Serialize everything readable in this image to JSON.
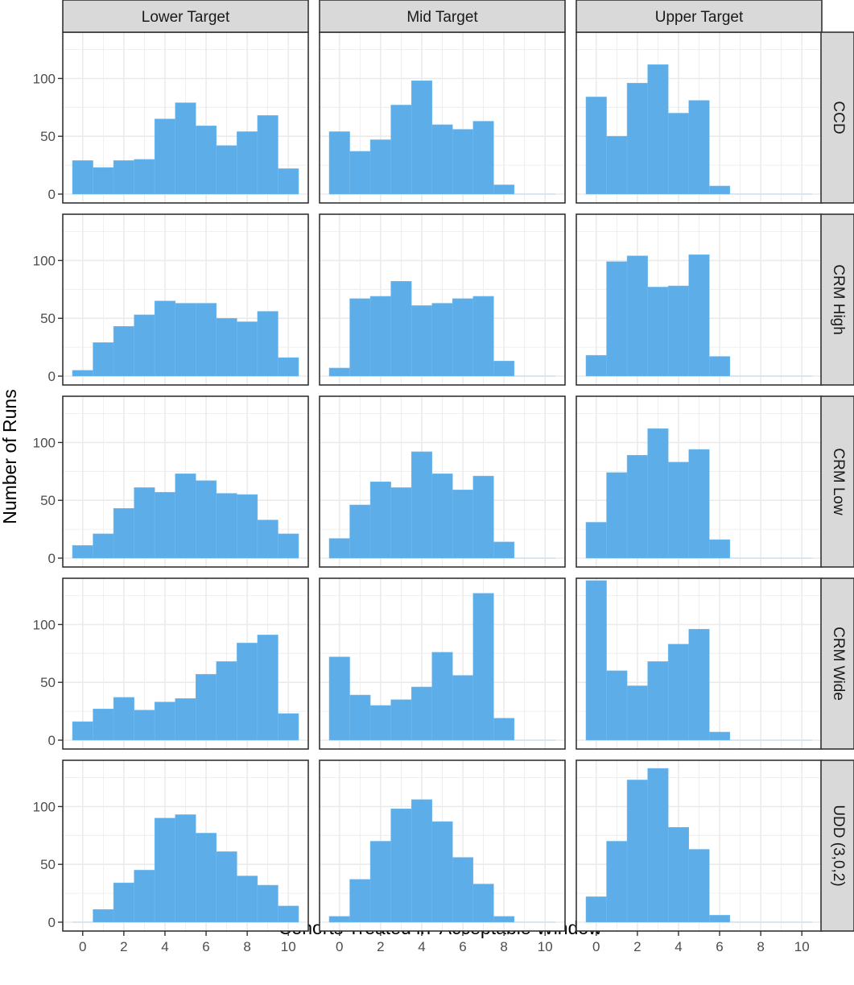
{
  "chart_data": {
    "type": "bar",
    "subtype": "faceted-histogram",
    "xlabel": "Cohorts Treated in 'Acceptable Window'",
    "ylabel": "Number of Runs",
    "columns": [
      "Lower Target",
      "Mid Target",
      "Upper Target"
    ],
    "rows": [
      "CCD",
      "CRM High",
      "CRM Low",
      "CRM Wide",
      "UDD (3,0,2)"
    ],
    "bins": [
      0,
      1,
      2,
      3,
      4,
      5,
      6,
      7,
      8,
      9,
      10
    ],
    "xlim": [
      -0.5,
      10.5
    ],
    "ylim": [
      0,
      140
    ],
    "xticks": [
      0,
      2,
      4,
      6,
      8,
      10
    ],
    "yticks": [
      0,
      50,
      100
    ],
    "grid": true,
    "colors": {
      "fill": "#5dade9",
      "stroke": "#74bbee",
      "zero_line": "#cfe2f1",
      "strip_bg": "#d9d9d9",
      "grid": "#ebebeb"
    },
    "panels": [
      {
        "row": "CCD",
        "col": "Lower Target",
        "values": [
          29,
          23,
          29,
          30,
          65,
          79,
          59,
          42,
          54,
          68,
          22
        ]
      },
      {
        "row": "CCD",
        "col": "Mid Target",
        "values": [
          54,
          37,
          47,
          77,
          98,
          60,
          56,
          63,
          8,
          0,
          0
        ]
      },
      {
        "row": "CCD",
        "col": "Upper Target",
        "values": [
          84,
          50,
          96,
          112,
          70,
          81,
          7,
          0,
          0,
          0,
          0
        ]
      },
      {
        "row": "CRM High",
        "col": "Lower Target",
        "values": [
          5,
          29,
          43,
          53,
          65,
          63,
          63,
          50,
          47,
          56,
          16
        ]
      },
      {
        "row": "CRM High",
        "col": "Mid Target",
        "values": [
          7,
          67,
          69,
          82,
          61,
          63,
          67,
          69,
          13,
          0,
          0
        ]
      },
      {
        "row": "CRM High",
        "col": "Upper Target",
        "values": [
          18,
          99,
          104,
          77,
          78,
          105,
          17,
          0,
          0,
          0,
          0
        ]
      },
      {
        "row": "CRM Low",
        "col": "Lower Target",
        "values": [
          11,
          21,
          43,
          61,
          57,
          73,
          67,
          56,
          55,
          33,
          21
        ]
      },
      {
        "row": "CRM Low",
        "col": "Mid Target",
        "values": [
          17,
          46,
          66,
          61,
          92,
          73,
          59,
          71,
          14,
          0,
          0
        ]
      },
      {
        "row": "CRM Low",
        "col": "Upper Target",
        "values": [
          31,
          74,
          89,
          112,
          83,
          94,
          16,
          0,
          0,
          0,
          0
        ]
      },
      {
        "row": "CRM Wide",
        "col": "Lower Target",
        "values": [
          16,
          27,
          37,
          26,
          33,
          36,
          57,
          68,
          84,
          91,
          23
        ]
      },
      {
        "row": "CRM Wide",
        "col": "Mid Target",
        "values": [
          72,
          39,
          30,
          35,
          46,
          76,
          56,
          127,
          19,
          0,
          0
        ]
      },
      {
        "row": "CRM Wide",
        "col": "Upper Target",
        "values": [
          138,
          60,
          47,
          68,
          83,
          96,
          7,
          0,
          0,
          0,
          0
        ]
      },
      {
        "row": "UDD (3,0,2)",
        "col": "Lower Target",
        "values": [
          0,
          11,
          34,
          45,
          90,
          93,
          77,
          61,
          40,
          32,
          14
        ]
      },
      {
        "row": "UDD (3,0,2)",
        "col": "Mid Target",
        "values": [
          5,
          37,
          70,
          98,
          106,
          87,
          56,
          33,
          5,
          0,
          0
        ]
      },
      {
        "row": "UDD (3,0,2)",
        "col": "Upper Target",
        "values": [
          22,
          70,
          123,
          133,
          82,
          63,
          6,
          0,
          0,
          0,
          0
        ]
      }
    ]
  }
}
